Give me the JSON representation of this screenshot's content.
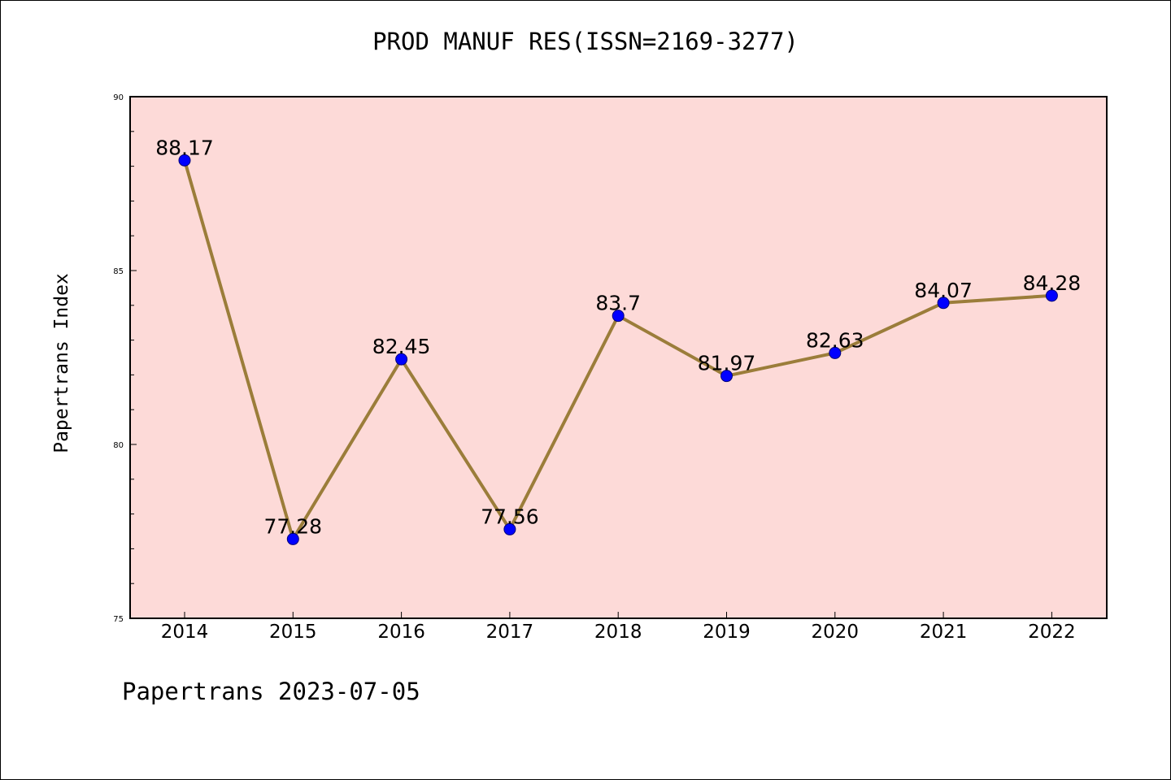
{
  "title": "PROD MANUF RES(ISSN=2169-3277)",
  "footer": "Papertrans 2023-07-05",
  "chart_data": {
    "type": "line",
    "title": "PROD MANUF RES(ISSN=2169-3277)",
    "xlabel": "",
    "ylabel": "Papertrans Index",
    "categories": [
      "2014",
      "2015",
      "2016",
      "2017",
      "2018",
      "2019",
      "2020",
      "2021",
      "2022"
    ],
    "values": [
      88.17,
      77.28,
      82.45,
      77.56,
      83.7,
      81.97,
      82.63,
      84.07,
      84.28
    ],
    "data_labels": [
      "88.17",
      "77.28",
      "82.45",
      "77.56",
      "83.7",
      "81.97",
      "82.63",
      "84.07",
      "84.28"
    ],
    "ylim": [
      75,
      90
    ],
    "yticks": [
      "75",
      "80",
      "85",
      "90"
    ],
    "grid": false,
    "legend": "none",
    "colors": {
      "plot_background": "#fddad8",
      "line": "#9b7d3a",
      "marker": "#0000ff"
    }
  }
}
